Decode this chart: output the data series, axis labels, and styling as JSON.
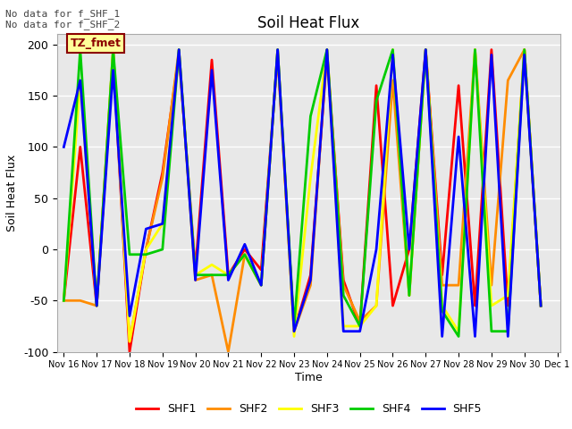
{
  "title": "Soil Heat Flux",
  "ylabel": "Soil Heat Flux",
  "xlabel": "Time",
  "annotation_text": "No data for f_SHF_1\nNo data for f_SHF_2",
  "legend_label": "TZ_fmet",
  "ylim": [
    -100,
    210
  ],
  "series": {
    "SHF1": {
      "color": "#ff0000",
      "x": [
        16.0,
        16.5,
        17.0,
        17.5,
        18.0,
        18.5,
        19.0,
        19.5,
        20.0,
        20.5,
        21.0,
        21.5,
        22.0,
        22.5,
        23.0,
        23.5,
        24.0,
        24.5,
        25.0,
        25.5,
        26.0,
        26.5,
        27.0,
        27.5,
        28.0,
        28.5,
        29.0,
        29.5,
        30.0,
        30.5
      ],
      "y": [
        -50,
        100,
        -55,
        190,
        -100,
        0,
        75,
        190,
        -20,
        185,
        -25,
        0,
        -20,
        190,
        -80,
        -25,
        190,
        -30,
        -75,
        160,
        -55,
        0,
        195,
        -25,
        160,
        -55,
        195,
        -55,
        195,
        -55
      ]
    },
    "SHF2": {
      "color": "#ff8c00",
      "x": [
        16.0,
        16.5,
        17.0,
        17.5,
        18.0,
        18.5,
        19.0,
        19.5,
        20.0,
        20.5,
        21.0,
        21.5,
        22.0,
        22.5,
        23.0,
        23.5,
        24.0,
        24.5,
        25.0,
        25.5,
        26.0,
        26.5,
        27.0,
        27.5,
        28.0,
        28.5,
        29.0,
        29.5,
        30.0,
        30.5
      ],
      "y": [
        -50,
        -50,
        -55,
        195,
        -90,
        0,
        70,
        195,
        -30,
        -25,
        -100,
        -5,
        -35,
        195,
        -80,
        -35,
        195,
        -35,
        -70,
        -55,
        165,
        -45,
        195,
        -35,
        -35,
        195,
        -35,
        165,
        195,
        -55
      ]
    },
    "SHF3": {
      "color": "#ffff00",
      "x": [
        16.0,
        16.5,
        17.0,
        17.5,
        18.0,
        18.5,
        19.0,
        19.5,
        20.0,
        20.5,
        21.0,
        21.5,
        22.0,
        22.5,
        23.0,
        23.5,
        24.0,
        24.5,
        25.0,
        25.5,
        26.0,
        26.5,
        27.0,
        27.5,
        28.0,
        28.5,
        29.0,
        29.5,
        30.0,
        30.5
      ],
      "y": [
        -50,
        165,
        -55,
        195,
        -90,
        0,
        25,
        195,
        -25,
        -15,
        -25,
        -5,
        -35,
        195,
        -85,
        70,
        195,
        -75,
        -75,
        -55,
        195,
        -45,
        195,
        -55,
        -80,
        195,
        -55,
        -45,
        195,
        -55
      ]
    },
    "SHF4": {
      "color": "#00cc00",
      "x": [
        16.0,
        16.5,
        17.0,
        17.5,
        18.0,
        18.5,
        19.0,
        19.5,
        20.0,
        20.5,
        21.0,
        21.5,
        22.0,
        22.5,
        23.0,
        23.5,
        24.0,
        24.5,
        25.0,
        25.5,
        26.0,
        26.5,
        27.0,
        27.5,
        28.0,
        28.5,
        29.0,
        29.5,
        30.0,
        30.5
      ],
      "y": [
        -50,
        195,
        -55,
        195,
        -5,
        -5,
        0,
        195,
        -25,
        -25,
        -25,
        -5,
        -35,
        195,
        -75,
        130,
        195,
        -45,
        -75,
        145,
        195,
        -45,
        195,
        -60,
        -85,
        195,
        -80,
        -80,
        195,
        -55
      ]
    },
    "SHF5": {
      "color": "#0000ff",
      "x": [
        16.0,
        16.5,
        17.0,
        17.5,
        18.0,
        18.5,
        19.0,
        19.5,
        20.0,
        20.5,
        21.0,
        21.5,
        22.0,
        22.5,
        23.0,
        23.5,
        24.0,
        24.5,
        25.0,
        25.5,
        26.0,
        26.5,
        27.0,
        27.5,
        28.0,
        28.5,
        29.0,
        29.5,
        30.0,
        30.5
      ],
      "y": [
        100,
        165,
        -55,
        175,
        -65,
        20,
        25,
        195,
        -30,
        175,
        -30,
        5,
        -35,
        195,
        -80,
        -30,
        195,
        -80,
        -80,
        0,
        190,
        0,
        195,
        -85,
        110,
        -85,
        190,
        -85,
        190,
        -55
      ]
    }
  },
  "xtick_labels": [
    "Nov 16",
    "Nov 17",
    "Nov 18",
    "Nov 19",
    "Nov 20",
    "Nov 21",
    "Nov 22",
    "Nov 23",
    "Nov 24",
    "Nov 25",
    "Nov 26",
    "Nov 27",
    "Nov 28",
    "Nov 29",
    "Nov 30",
    "Dec 1"
  ],
  "xtick_positions": [
    16,
    17,
    18,
    19,
    20,
    21,
    22,
    23,
    24,
    25,
    26,
    27,
    28,
    29,
    30,
    31
  ],
  "ytick_labels": [
    "-100",
    "-50",
    "0",
    "50",
    "100",
    "150",
    "200"
  ],
  "ytick_positions": [
    -100,
    -50,
    0,
    50,
    100,
    150,
    200
  ],
  "bg_color": "#dcdcdc",
  "plot_bg": "#e8e8e8",
  "linewidth": 2.0,
  "figsize": [
    6.4,
    4.8
  ],
  "dpi": 100
}
